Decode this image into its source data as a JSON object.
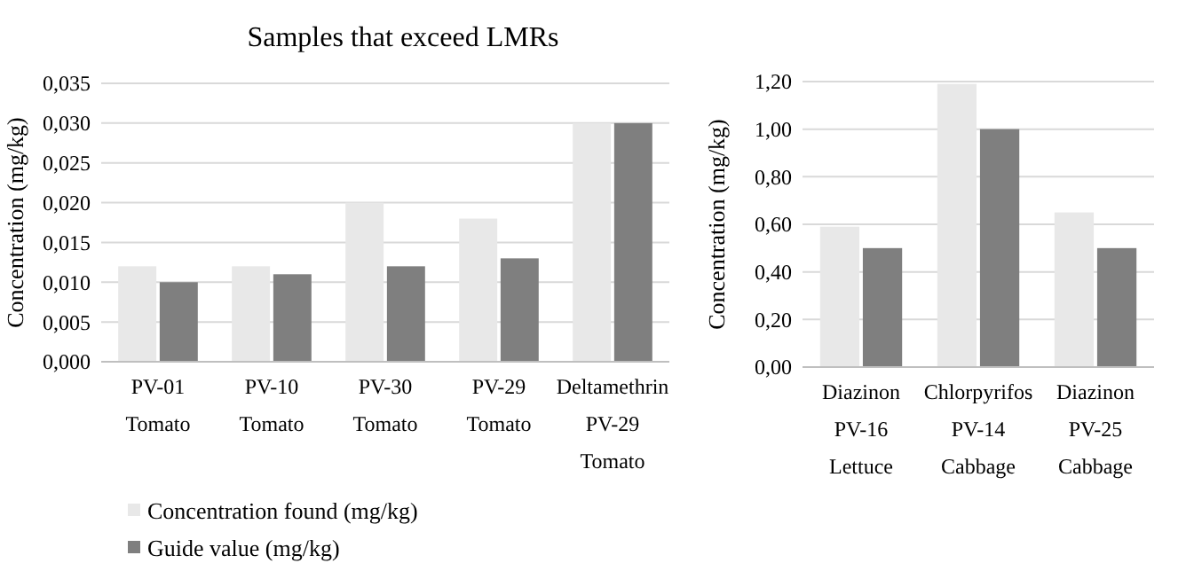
{
  "chart_data": [
    {
      "type": "bar",
      "title": "Samples that exceed LMRs",
      "ylabel": "Concentration (mg/kg)",
      "categories": [
        "PV-01\nTomato",
        "PV-10\nTomato",
        "PV-30\nTomato",
        "PV-29\nTomato",
        "Deltamethrin\nPV-29\nTomato"
      ],
      "series": [
        {
          "name": "Concentration found (mg/kg)",
          "color": "#e8e8e8",
          "values": [
            0.012,
            0.012,
            0.02,
            0.018,
            0.03
          ]
        },
        {
          "name": "Guide value (mg/kg)",
          "color": "#7f7f7f",
          "values": [
            0.01,
            0.011,
            0.012,
            0.013,
            0.03
          ]
        }
      ],
      "ylim": [
        0,
        0.035
      ],
      "yticks": [
        {
          "value": 0,
          "label": "0,000"
        },
        {
          "value": 0.005,
          "label": "0,005"
        },
        {
          "value": 0.01,
          "label": "0,010"
        },
        {
          "value": 0.015,
          "label": "0,015"
        },
        {
          "value": 0.02,
          "label": "0,020"
        },
        {
          "value": 0.025,
          "label": "0,025"
        },
        {
          "value": 0.03,
          "label": "0,030"
        },
        {
          "value": 0.035,
          "label": "0,035"
        }
      ],
      "grid": "y",
      "legend": "bottom"
    },
    {
      "type": "bar",
      "ylabel": "Concentration (mg/kg)",
      "categories": [
        "Diazinon\nPV-16\nLettuce",
        "Chlorpyrifos\nPV-14\nCabbage",
        "Diazinon\nPV-25\nCabbage"
      ],
      "series": [
        {
          "color": "#e8e8e8",
          "values": [
            0.59,
            1.19,
            0.65
          ]
        },
        {
          "color": "#7f7f7f",
          "values": [
            0.5,
            1.0,
            0.5
          ]
        }
      ],
      "ylim": [
        0,
        1.2
      ],
      "yticks": [
        {
          "value": 0,
          "label": "0,00"
        },
        {
          "value": 0.2,
          "label": "0,20"
        },
        {
          "value": 0.4,
          "label": "0,40"
        },
        {
          "value": 0.6,
          "label": "0,60"
        },
        {
          "value": 0.8,
          "label": "0,80"
        },
        {
          "value": 1,
          "label": "1,00"
        },
        {
          "value": 1.2,
          "label": "1,20"
        }
      ],
      "grid": "y"
    }
  ]
}
